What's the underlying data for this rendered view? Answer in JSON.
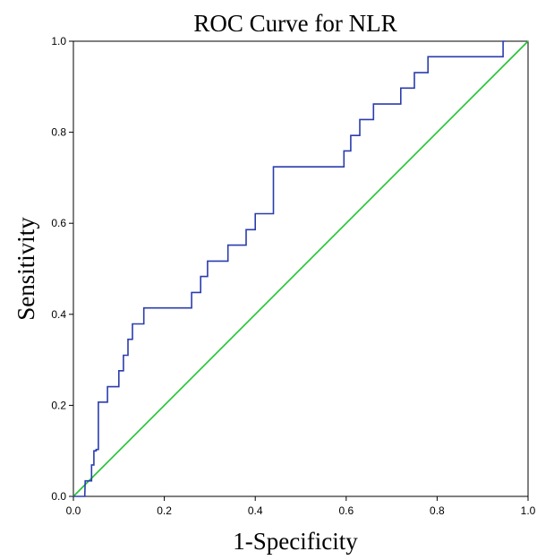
{
  "chart_data": {
    "type": "line",
    "title": "ROC Curve for NLR",
    "xlabel": "1-Specificity",
    "ylabel": "Sensitivity",
    "xlim": [
      0.0,
      1.0
    ],
    "ylim": [
      0.0,
      1.0
    ],
    "x_ticks": [
      "0.0",
      "0.2",
      "0.4",
      "0.6",
      "0.8",
      "1.0"
    ],
    "y_ticks": [
      "0.0",
      "0.2",
      "0.4",
      "0.6",
      "0.8",
      "1.0"
    ],
    "grid": false,
    "legend": "none",
    "series": [
      {
        "color": "#2a3cae",
        "x": [
          0.0,
          0.025,
          0.026,
          0.04,
          0.04,
          0.045,
          0.045,
          0.05,
          0.05,
          0.055,
          0.055,
          0.075,
          0.075,
          0.1,
          0.1,
          0.11,
          0.11,
          0.12,
          0.12,
          0.13,
          0.13,
          0.155,
          0.155,
          0.17,
          0.17,
          0.26,
          0.26,
          0.28,
          0.28,
          0.295,
          0.295,
          0.305,
          0.305,
          0.34,
          0.34,
          0.38,
          0.38,
          0.4,
          0.4,
          0.44,
          0.44,
          0.595,
          0.595,
          0.6,
          0.6,
          0.61,
          0.61,
          0.63,
          0.63,
          0.66,
          0.66,
          0.72,
          0.72,
          0.75,
          0.75,
          0.76,
          0.76,
          0.78,
          0.78,
          0.945,
          0.945,
          0.95
        ],
        "y": [
          0.0,
          0.0,
          0.034,
          0.034,
          0.069,
          0.069,
          0.1,
          0.1,
          0.103,
          0.103,
          0.207,
          0.207,
          0.241,
          0.241,
          0.276,
          0.276,
          0.31,
          0.31,
          0.345,
          0.345,
          0.379,
          0.379,
          0.414,
          0.414,
          0.414,
          0.414,
          0.448,
          0.448,
          0.483,
          0.483,
          0.517,
          0.517,
          0.517,
          0.517,
          0.552,
          0.552,
          0.586,
          0.586,
          0.621,
          0.621,
          0.724,
          0.724,
          0.759,
          0.759,
          0.759,
          0.759,
          0.793,
          0.793,
          0.828,
          0.828,
          0.862,
          0.862,
          0.897,
          0.897,
          0.931,
          0.931,
          0.931,
          0.931,
          0.966,
          0.966,
          1.0,
          1.0
        ]
      },
      {
        "color": "#22c232",
        "x": [
          0.0,
          1.0
        ],
        "y": [
          0.0,
          1.0
        ]
      }
    ]
  }
}
